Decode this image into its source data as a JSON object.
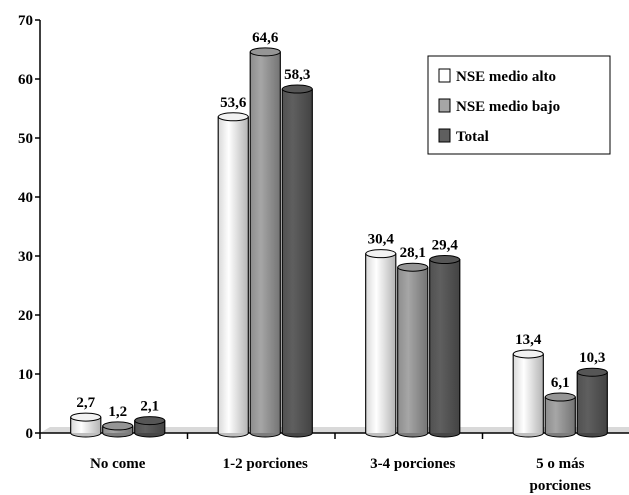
{
  "chart_data": {
    "type": "bar",
    "categories": [
      "No come",
      "1-2 porciones",
      "3-4 porciones",
      "5 o más porciones"
    ],
    "series": [
      {
        "name": "NSE medio alto",
        "values": [
          2.7,
          53.6,
          30.4,
          13.4
        ],
        "labels": [
          "2,7",
          "53,6",
          "30,4",
          "13,4"
        ],
        "color": "#ffffff"
      },
      {
        "name": "NSE medio bajo",
        "values": [
          1.2,
          64.6,
          28.1,
          6.1
        ],
        "labels": [
          "1,2",
          "64,6",
          "28,1",
          "6,1"
        ],
        "color": "#a6a6a6"
      },
      {
        "name": "Total",
        "values": [
          2.1,
          58.3,
          29.4,
          10.3
        ],
        "labels": [
          "2,1",
          "58,3",
          "29,4",
          "10,3"
        ],
        "color": "#5f5f5f"
      }
    ],
    "yticks": [
      "0",
      "10",
      "20",
      "30",
      "40",
      "50",
      "60",
      "70"
    ],
    "ylim": [
      0,
      70
    ],
    "grid": false,
    "legend_position": "top-right",
    "bar_style": "3d-cylinder",
    "title": "",
    "xlabel": "",
    "ylabel": ""
  }
}
